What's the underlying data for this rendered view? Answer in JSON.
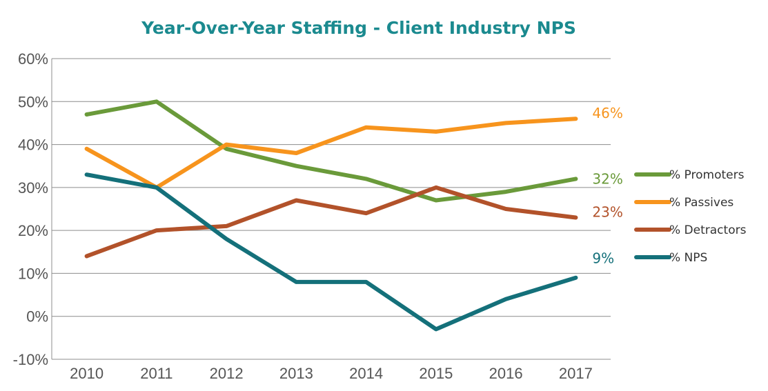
{
  "chart_data": {
    "type": "line",
    "title": "Year-Over-Year Staffing - Client Industry NPS",
    "xlabel": "",
    "ylabel": "",
    "categories": [
      "2010",
      "2011",
      "2012",
      "2013",
      "2014",
      "2015",
      "2016",
      "2017"
    ],
    "ylim": [
      -10,
      60
    ],
    "yticks": [
      -10,
      0,
      10,
      20,
      30,
      40,
      50,
      60
    ],
    "ytick_labels": [
      "-10%",
      "0%",
      "10%",
      "20%",
      "30%",
      "40%",
      "50%",
      "60%"
    ],
    "grid": true,
    "legend_position": "right",
    "series": [
      {
        "name": "% Promoters",
        "color": "#6a9a3a",
        "values": [
          47,
          50,
          39,
          35,
          32,
          27,
          29,
          32
        ],
        "end_label": "32%"
      },
      {
        "name": "% Passives",
        "color": "#f7941d",
        "values": [
          39,
          30,
          40,
          38,
          44,
          43,
          45,
          46
        ],
        "end_label": "46%"
      },
      {
        "name": "% Detractors",
        "color": "#b2522a",
        "values": [
          14,
          20,
          21,
          27,
          24,
          30,
          25,
          23
        ],
        "end_label": "23%"
      },
      {
        "name": "% NPS",
        "color": "#14707a",
        "values": [
          33,
          30,
          18,
          8,
          8,
          -3,
          4,
          9
        ],
        "end_label": "9%"
      }
    ]
  }
}
